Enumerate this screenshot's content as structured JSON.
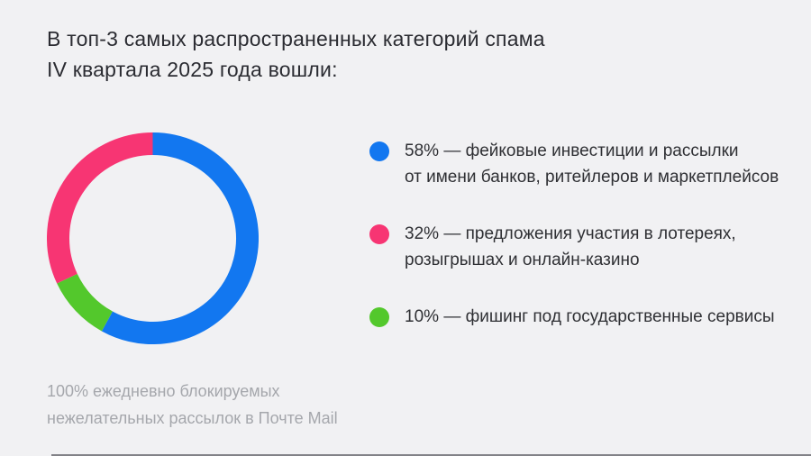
{
  "title": {
    "line1": "В топ-3 самых распространенных категорий спама",
    "line2": "IV квартала 2025 года вошли:"
  },
  "legend": {
    "items": [
      {
        "pct": "58%",
        "line1": "— фейковые инвестиции и рассылки",
        "line2": "от имени банков, ритейлеров и маркетплейсов",
        "color": "#1277F0"
      },
      {
        "pct": "32%",
        "line1": "— предложения участия в лотереях,",
        "line2": "розыгрышах и онлайн-казино",
        "color": "#F73573"
      },
      {
        "pct": "10%",
        "line1": "— фишинг под государственные сервисы",
        "line2": "",
        "color": "#53C82C"
      }
    ]
  },
  "footnote": {
    "line1": "100% ежедневно блокируемых",
    "line2": "нежелательных рассылок в Почте Mail"
  },
  "colors": {
    "background": "#F1F1F3",
    "title_text": "#2B2C32",
    "legend_text": "#2F3034",
    "footnote_text": "#A5A7AC",
    "blue": "#1277F0",
    "pink": "#F73573",
    "green": "#53C82C"
  },
  "chart_data": {
    "type": "pie",
    "variant": "donut",
    "title": "В топ-3 самых распространенных категорий спама IV квартала 2025 года вошли:",
    "unit": "%",
    "start_angle_deg": 0,
    "direction": "clockwise",
    "legend_position": "right",
    "segments": [
      {
        "label": "фейковые инвестиции и рассылки от имени банков, ритейлеров и маркетплейсов",
        "value": 58,
        "color": "#1277F0"
      },
      {
        "label": "фишинг под государственные сервисы",
        "value": 10,
        "color": "#53C82C"
      },
      {
        "label": "предложения участия в лотереях, розыгрышах и онлайн-казино",
        "value": 32,
        "color": "#F73573"
      }
    ],
    "note": "100% ежедневно блокируемых нежелательных рассылок в Почте Mail"
  }
}
